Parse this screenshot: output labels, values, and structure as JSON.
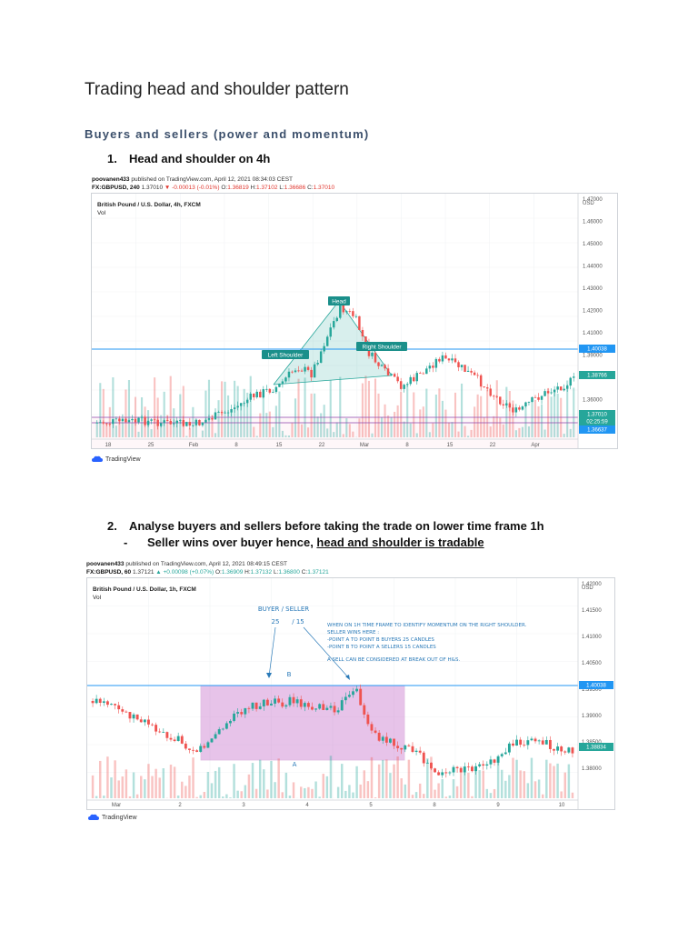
{
  "document": {
    "title": "Trading head and shoulder pattern",
    "subtitle": "Buyers and sellers (power and momentum)",
    "item1": {
      "number": "1.",
      "text": "Head and shoulder on 4h"
    },
    "item2": {
      "number": "2.",
      "text": "Analyse buyers and sellers before taking the trade on lower time frame 1h"
    },
    "bullet": {
      "dash": "-",
      "text": "Seller wins over buyer hence, ",
      "underlined": "head and shoulder is tradable"
    }
  },
  "chart1": {
    "published": {
      "author": "poovanen433",
      "rest": "published on TradingView.com, April 12, 2021 08:34:03 CEST"
    },
    "ticker": {
      "symbol": "FX:GBPUSD, 240",
      "price": "1.37010",
      "change": "▼ -0.00013 (-0.01%)",
      "o_label": "O:",
      "o": "1.36819",
      "h_label": "H:",
      "h": "1.37102",
      "l_label": "L:",
      "l": "1.36686",
      "c_label": "C:",
      "c": "1.37010"
    },
    "name": "British Pound / U.S. Dollar, 4h, FXCM",
    "vol": "Vol",
    "currency": "USD",
    "y_ticks": [
      "1.47000",
      "1.46000",
      "1.45000",
      "1.44000",
      "1.43000",
      "1.42000",
      "1.41000",
      "1.39000",
      "1.38000",
      "1.36000"
    ],
    "x_ticks": [
      "18",
      "25",
      "Feb",
      "8",
      "15",
      "22",
      "Mar",
      "8",
      "15",
      "22",
      "Apr"
    ],
    "badges": {
      "level": "1.40038",
      "current": "1.38766",
      "price": "1.37010",
      "countdown": "02:25:59",
      "low": "1.36637"
    },
    "annotations": {
      "head": "Head",
      "left": "Left Shoulder",
      "right": "Right Shoulder"
    },
    "colors": {
      "up": "#26a69a",
      "down": "#ef5350",
      "line": "#2196f3",
      "label_bg": "#1a8f8a"
    }
  },
  "chart2": {
    "published": {
      "author": "poovanen433",
      "rest": "published on TradingView.com, April 12, 2021 08:49:15 CEST"
    },
    "ticker": {
      "symbol": "FX:GBPUSD, 60",
      "price": "1.37121",
      "change": "▲ +0.00098 (+0.07%)",
      "o_label": "O:",
      "o": "1.36909",
      "h_label": "H:",
      "h": "1.37132",
      "l_label": "L:",
      "l": "1.36800",
      "c_label": "C:",
      "c": "1.37121"
    },
    "name": "British Pound / U.S. Dollar, 1h, FXCM",
    "vol": "Vol",
    "currency": "USD",
    "y_ticks": [
      "1.42000",
      "1.41500",
      "1.41000",
      "1.40500",
      "1.39500",
      "1.39000",
      "1.38500",
      "1.38000"
    ],
    "x_ticks": [
      "Mar",
      "2",
      "3",
      "4",
      "5",
      "8",
      "9",
      "10"
    ],
    "badges": {
      "level": "1.40038",
      "current": "1.38834"
    },
    "annotations": {
      "buyer_seller": "BUYER / SELLER",
      "num_left": "25",
      "num_right": "/ 15",
      "b": "B",
      "a": "A",
      "note1": "WHEN ON 1H TIME FRAME TO IDENTIFY MOMENTUM ON THE RIGHT SHOULDER.",
      "note2": "SELLER WINS HERE :",
      "note3": "-POINT A TO POINT B BUYERS 25 CANDLES",
      "note4": "-POINT B TO POINT A SELLERS 15 CANDLES",
      "note5": "A SELL CAN BE CONSIDERED AT BREAK OUT OF H&S."
    }
  },
  "tradingview": {
    "label": "TradingView"
  }
}
